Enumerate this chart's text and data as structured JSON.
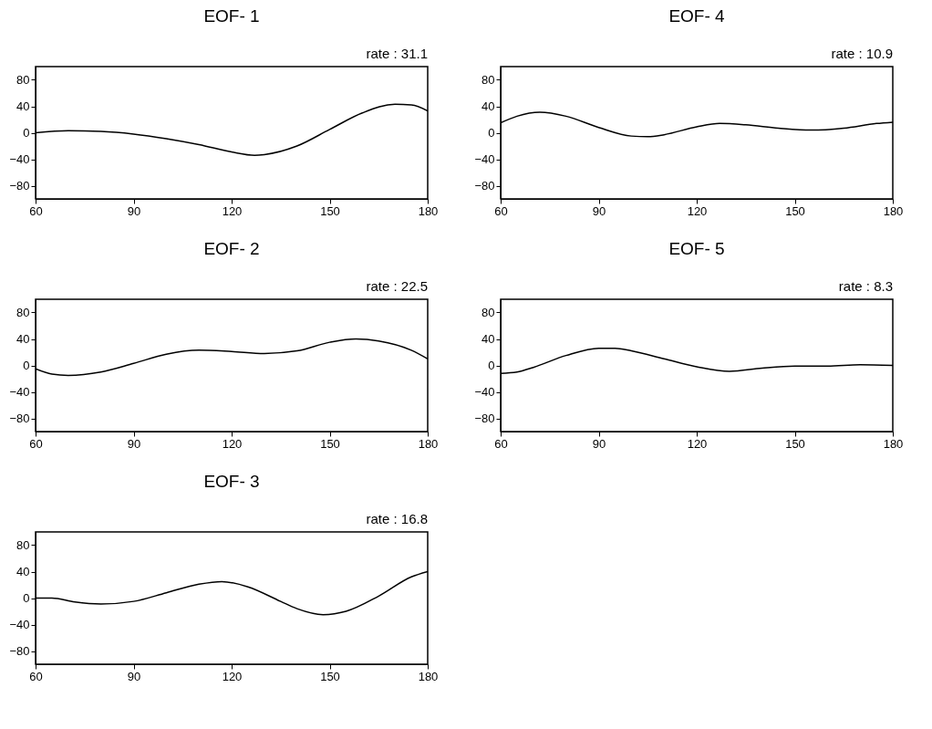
{
  "chart_data": [
    {
      "type": "line",
      "title": "EOF- 1",
      "subtitle": "rate : 31.1",
      "x": [
        60,
        70,
        80,
        90,
        100,
        110,
        120,
        127,
        130,
        140,
        150,
        160,
        170,
        175,
        180
      ],
      "series": [
        {
          "color": "#000000",
          "values": [
            0,
            3,
            2,
            -2,
            -9,
            -18,
            -29,
            -34,
            -33,
            -20,
            5,
            30,
            43,
            42,
            33
          ]
        }
      ],
      "xlim": [
        60,
        180
      ],
      "xticks": [
        60,
        90,
        120,
        150,
        180
      ],
      "ylim": [
        -100,
        100
      ],
      "yticks": [
        -80,
        -40,
        0,
        40,
        80
      ],
      "grid": false
    },
    {
      "type": "line",
      "title": "EOF- 4",
      "subtitle": "rate : 10.9",
      "x": [
        60,
        65,
        72,
        80,
        90,
        100,
        105,
        110,
        120,
        127,
        135,
        145,
        155,
        165,
        175,
        180
      ],
      "series": [
        {
          "color": "#000000",
          "values": [
            15,
            25,
            31,
            25,
            8,
            -5,
            -6,
            -3,
            9,
            14,
            12,
            7,
            4,
            7,
            14,
            16
          ]
        }
      ],
      "xlim": [
        60,
        180
      ],
      "xticks": [
        60,
        90,
        120,
        150,
        180
      ],
      "ylim": [
        -100,
        100
      ],
      "yticks": [
        -80,
        -40,
        0,
        40,
        80
      ],
      "grid": false
    },
    {
      "type": "line",
      "title": "EOF- 2",
      "subtitle": "rate : 22.5",
      "x": [
        60,
        65,
        70,
        80,
        90,
        100,
        110,
        120,
        130,
        140,
        150,
        158,
        165,
        175,
        180
      ],
      "series": [
        {
          "color": "#000000",
          "values": [
            -5,
            -13,
            -15,
            -10,
            3,
            17,
            23,
            21,
            18,
            22,
            35,
            40,
            37,
            23,
            10
          ]
        }
      ],
      "xlim": [
        60,
        180
      ],
      "xticks": [
        60,
        90,
        120,
        150,
        180
      ],
      "ylim": [
        -100,
        100
      ],
      "yticks": [
        -80,
        -40,
        0,
        40,
        80
      ],
      "grid": false
    },
    {
      "type": "line",
      "title": "EOF- 5",
      "subtitle": "rate :  8.3",
      "x": [
        60,
        65,
        70,
        80,
        90,
        95,
        100,
        110,
        120,
        130,
        140,
        150,
        160,
        170,
        180
      ],
      "series": [
        {
          "color": "#000000",
          "values": [
            -12,
            -10,
            -3,
            15,
            26,
            26,
            22,
            10,
            -2,
            -9,
            -4,
            -1,
            -1,
            1,
            0
          ]
        }
      ],
      "xlim": [
        60,
        180
      ],
      "xticks": [
        60,
        90,
        120,
        150,
        180
      ],
      "ylim": [
        -100,
        100
      ],
      "yticks": [
        -80,
        -40,
        0,
        40,
        80
      ],
      "grid": false
    },
    {
      "type": "line",
      "title": "EOF- 3",
      "subtitle": "rate : 16.8",
      "x": [
        60,
        65,
        72,
        80,
        90,
        100,
        110,
        117,
        125,
        135,
        140,
        148,
        155,
        165,
        175,
        180
      ],
      "series": [
        {
          "color": "#000000",
          "values": [
            0,
            0,
            -6,
            -9,
            -5,
            8,
            21,
            25,
            17,
            -5,
            -16,
            -25,
            -20,
            3,
            32,
            40
          ]
        }
      ],
      "xlim": [
        60,
        180
      ],
      "xticks": [
        60,
        90,
        120,
        150,
        180
      ],
      "ylim": [
        -100,
        100
      ],
      "yticks": [
        -80,
        -40,
        0,
        40,
        80
      ],
      "grid": false
    }
  ]
}
